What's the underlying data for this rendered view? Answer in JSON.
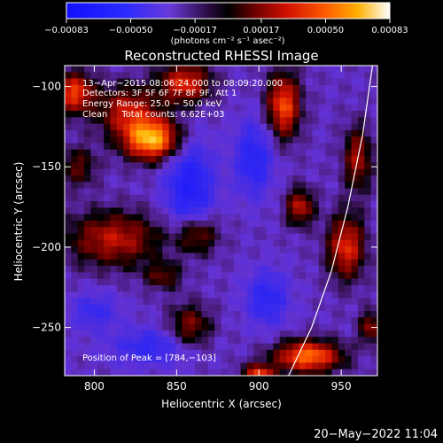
{
  "chart_data": {
    "type": "heatmap",
    "title": "Reconstructed RHESSI Image",
    "xlabel": "Heliocentric X (arcsec)",
    "ylabel": "Heliocentric Y (arcsec)",
    "xlim": [
      782,
      972
    ],
    "ylim": [
      -280,
      -87
    ],
    "x_ticks": [
      800,
      850,
      900,
      950
    ],
    "y_ticks": [
      -100,
      -150,
      -200,
      -250
    ],
    "x_tick_labels": [
      "800",
      "850",
      "900",
      "950"
    ],
    "y_tick_labels": [
      "−100",
      "−150",
      "−200",
      "−250"
    ],
    "colorbar": {
      "range": [
        -0.00083,
        0.00083
      ],
      "tick_values": [
        -0.00083,
        -0.0005,
        -0.00017,
        0.00017,
        0.0005,
        0.00083
      ],
      "tick_labels": [
        "−0.00083",
        "−0.00050",
        "−0.00017",
        "0.00017",
        "0.00050",
        "0.00083"
      ],
      "unit_label": "(photons cm⁻² s⁻¹ asec⁻²)"
    },
    "annotations": [
      "13−Apr−2015 08:06:24.000 to 08:09:20.000",
      "Detectors: 3F 5F 6F 7F 8F 9F, Att 1",
      "Energy Range: 25.0 − 50.0 keV",
      "Clean     Total counts: 6.62E+03"
    ],
    "peak_label": "Position of Peak = [784,−103]",
    "peak": [
      784,
      -103
    ],
    "limb_curve": [
      [
        969,
        -87
      ],
      [
        963,
        -130
      ],
      [
        954,
        -175
      ],
      [
        944,
        -215
      ],
      [
        932,
        -250
      ],
      [
        918,
        -280
      ]
    ],
    "sources": [
      {
        "x": 835,
        "y": -133,
        "sx": 12,
        "sy": 9,
        "a": 1.0
      },
      {
        "x": 820,
        "y": -115,
        "sx": 13,
        "sy": 11,
        "a": 0.55
      },
      {
        "x": 855,
        "y": -98,
        "sx": 11,
        "sy": 9,
        "a": 0.65
      },
      {
        "x": 788,
        "y": -104,
        "sx": 8,
        "sy": 9,
        "a": 0.7
      },
      {
        "x": 790,
        "y": -150,
        "sx": 8,
        "sy": 9,
        "a": 0.35
      },
      {
        "x": 812,
        "y": -195,
        "sx": 20,
        "sy": 12,
        "a": 0.55
      },
      {
        "x": 862,
        "y": -192,
        "sx": 9,
        "sy": 9,
        "a": 0.5
      },
      {
        "x": 858,
        "y": -250,
        "sx": 9,
        "sy": 10,
        "a": 0.45
      },
      {
        "x": 915,
        "y": -112,
        "sx": 7,
        "sy": 14,
        "a": 0.75
      },
      {
        "x": 925,
        "y": -175,
        "sx": 6,
        "sy": 8,
        "a": 0.55
      },
      {
        "x": 960,
        "y": -145,
        "sx": 6,
        "sy": 14,
        "a": 0.5
      },
      {
        "x": 953,
        "y": -200,
        "sx": 8,
        "sy": 14,
        "a": 0.65
      },
      {
        "x": 930,
        "y": -268,
        "sx": 14,
        "sy": 7,
        "a": 0.85
      },
      {
        "x": 900,
        "y": -280,
        "sx": 7,
        "sy": 5,
        "a": 0.7
      },
      {
        "x": 968,
        "y": -250,
        "sx": 5,
        "sy": 7,
        "a": 0.45
      },
      {
        "x": 842,
        "y": -218,
        "sx": 8,
        "sy": 6,
        "a": 0.35
      }
    ],
    "troughs": [
      {
        "x": 858,
        "y": -163,
        "sx": 10,
        "sy": 20,
        "a": 0.55
      },
      {
        "x": 897,
        "y": -145,
        "sx": 8,
        "sy": 16,
        "a": 0.45
      },
      {
        "x": 905,
        "y": -232,
        "sx": 9,
        "sy": 12,
        "a": 0.4
      },
      {
        "x": 835,
        "y": -262,
        "sx": 18,
        "sy": 8,
        "a": 0.35
      },
      {
        "x": 800,
        "y": -240,
        "sx": 10,
        "sy": 8,
        "a": 0.3
      }
    ]
  },
  "footer": {
    "date_stamp": "20−May−2022 11:04"
  }
}
